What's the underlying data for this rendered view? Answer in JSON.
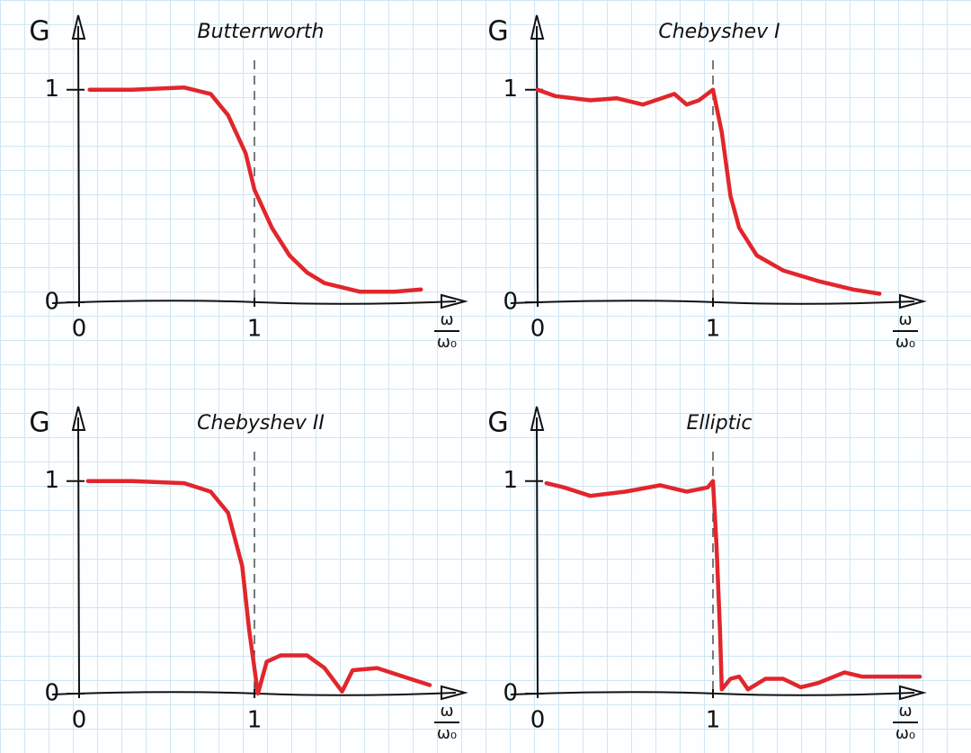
{
  "chart_data": [
    {
      "type": "line",
      "title": "Butterrworth",
      "y_label": "G",
      "x_label_top": "ω",
      "x_label_bottom": "ω₀",
      "xlim": [
        0,
        2.2
      ],
      "ylim": [
        0,
        1.35
      ],
      "xticks": [
        0,
        1
      ],
      "yticks": [
        0,
        1
      ],
      "vlines": [
        1
      ],
      "color": "#e1262c",
      "x": [
        0.06,
        0.3,
        0.6,
        0.75,
        0.85,
        0.95,
        1.0,
        1.1,
        1.2,
        1.3,
        1.4,
        1.6,
        1.8,
        1.95
      ],
      "values": [
        1.0,
        1.0,
        1.01,
        0.98,
        0.88,
        0.7,
        0.53,
        0.35,
        0.22,
        0.14,
        0.09,
        0.05,
        0.05,
        0.06
      ]
    },
    {
      "type": "line",
      "title": "Chebyshev I",
      "y_label": "G",
      "x_label_top": "ω",
      "x_label_bottom": "ω₀",
      "xlim": [
        0,
        2.2
      ],
      "ylim": [
        0,
        1.35
      ],
      "xticks": [
        0,
        1
      ],
      "yticks": [
        0,
        1
      ],
      "vlines": [
        1
      ],
      "color": "#e1262c",
      "x": [
        0.0,
        0.1,
        0.3,
        0.45,
        0.6,
        0.78,
        0.85,
        0.92,
        1.0,
        1.05,
        1.1,
        1.15,
        1.25,
        1.4,
        1.6,
        1.8,
        1.95
      ],
      "values": [
        1.0,
        0.97,
        0.95,
        0.96,
        0.93,
        0.98,
        0.93,
        0.95,
        1.0,
        0.8,
        0.5,
        0.35,
        0.22,
        0.15,
        0.1,
        0.06,
        0.04
      ]
    },
    {
      "type": "line",
      "title": "Chebyshev II",
      "y_label": "G",
      "x_label_top": "ω",
      "x_label_bottom": "ω₀",
      "xlim": [
        0,
        2.2
      ],
      "ylim": [
        0,
        1.35
      ],
      "xticks": [
        0,
        1
      ],
      "yticks": [
        0,
        1
      ],
      "vlines": [
        1
      ],
      "color": "#e1262c",
      "x": [
        0.05,
        0.3,
        0.6,
        0.75,
        0.85,
        0.93,
        0.97,
        1.02,
        1.07,
        1.15,
        1.3,
        1.4,
        1.5,
        1.56,
        1.7,
        1.85,
        2.0
      ],
      "values": [
        1.0,
        1.0,
        0.99,
        0.95,
        0.85,
        0.6,
        0.3,
        0.0,
        0.15,
        0.18,
        0.18,
        0.12,
        0.01,
        0.11,
        0.12,
        0.08,
        0.04
      ]
    },
    {
      "type": "line",
      "title": "Elliptic",
      "y_label": "G",
      "x_label_top": "ω",
      "x_label_bottom": "ω₀",
      "xlim": [
        0,
        2.2
      ],
      "ylim": [
        0,
        1.35
      ],
      "xticks": [
        0,
        1
      ],
      "yticks": [
        0,
        1
      ],
      "vlines": [
        1
      ],
      "color": "#e1262c",
      "x": [
        0.05,
        0.15,
        0.3,
        0.5,
        0.7,
        0.85,
        0.97,
        1.0,
        1.02,
        1.04,
        1.05,
        1.1,
        1.15,
        1.2,
        1.3,
        1.4,
        1.5,
        1.6,
        1.75,
        1.85,
        2.0,
        2.18
      ],
      "values": [
        0.99,
        0.97,
        0.93,
        0.95,
        0.98,
        0.95,
        0.97,
        1.0,
        0.7,
        0.3,
        0.02,
        0.07,
        0.08,
        0.02,
        0.07,
        0.07,
        0.03,
        0.05,
        0.1,
        0.08,
        0.08,
        0.08
      ]
    }
  ]
}
